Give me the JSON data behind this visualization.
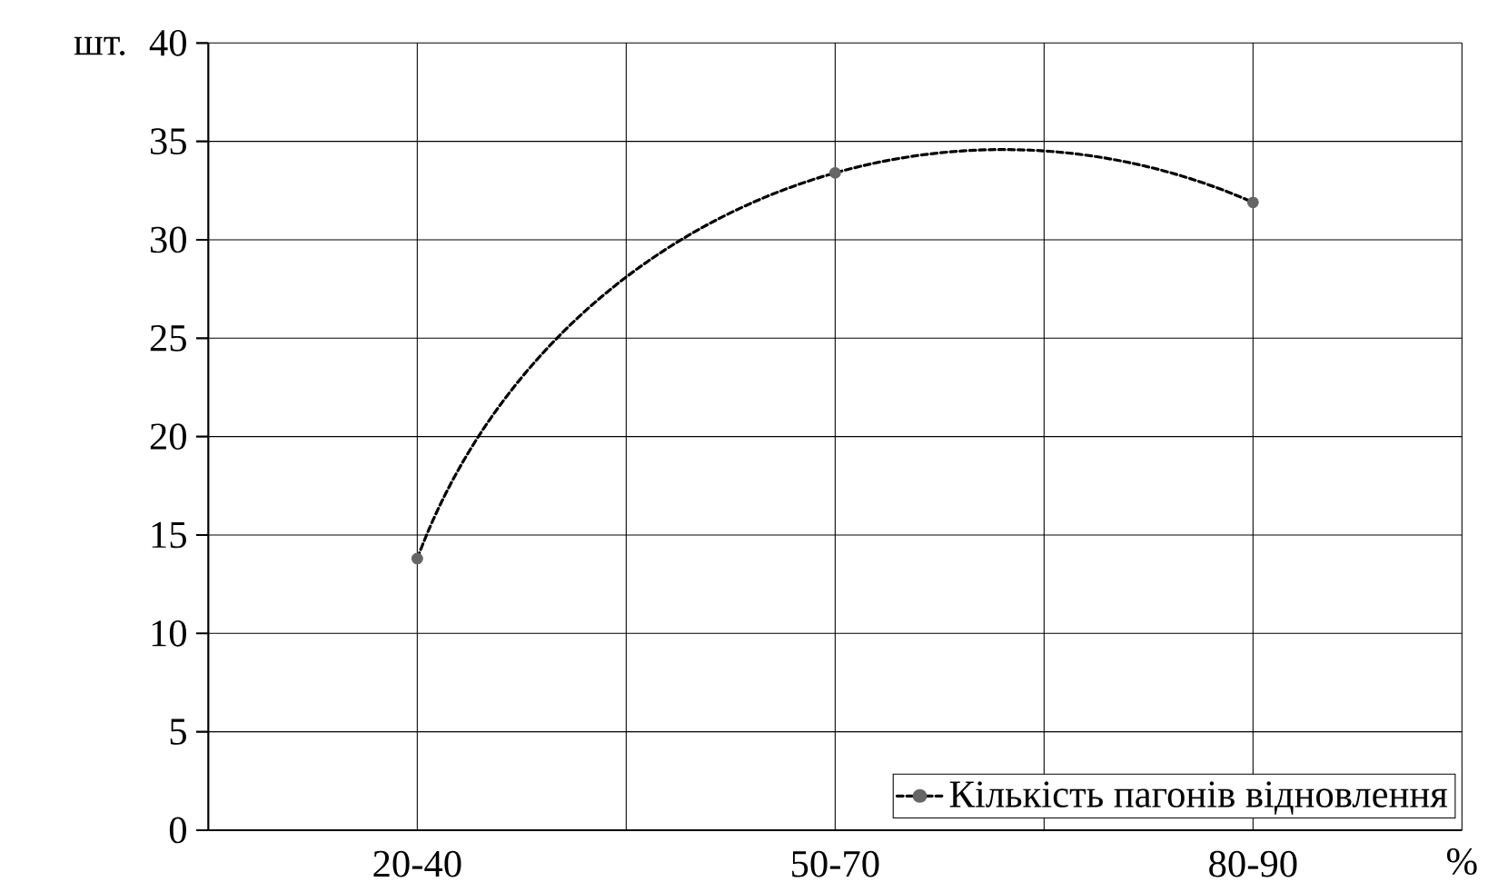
{
  "chart_data": {
    "type": "line",
    "xlabel": "%",
    "ylabel": "шт.",
    "categories": [
      "20-40",
      "50-70",
      "80-90"
    ],
    "series": [
      {
        "name": "Кількість пагонів відновлення",
        "color": "#000000",
        "values": [
          13.8,
          33.4,
          31.9
        ]
      }
    ],
    "ylim": [
      0,
      40
    ],
    "yticks": [
      0,
      5,
      10,
      15,
      20,
      25,
      30,
      35,
      40
    ],
    "grid": true,
    "legend": "bottom right",
    "marker": "circle",
    "line_style": "dashed"
  }
}
